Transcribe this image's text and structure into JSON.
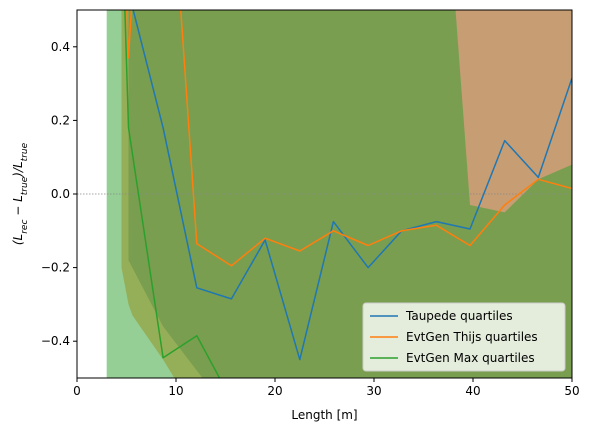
{
  "chart_data": {
    "type": "line",
    "xlabel": "Length [m]",
    "ylabel": "(L_rec − L_true)/L_true",
    "xlim": [
      0,
      50
    ],
    "ylim": [
      -0.5,
      0.5
    ],
    "xticks": [
      0,
      10,
      20,
      30,
      40,
      50
    ],
    "yticks": [
      -0.4,
      -0.2,
      0.0,
      0.2,
      0.4
    ],
    "x_tick_labels": [
      "0",
      "10",
      "20",
      "30",
      "40",
      "50"
    ],
    "y_tick_labels": [
      "−0.4",
      "−0.2",
      "0.0",
      "0.2",
      "0.4"
    ],
    "reference_line": {
      "y": 0.0,
      "style": "dotted",
      "color": "#888888"
    },
    "legend_position": "lower-right",
    "series": [
      {
        "name": "Taupede quartiles",
        "color": "#1f77b4",
        "x": [
          5.2,
          8.7,
          12.1,
          15.6,
          19.0,
          22.5,
          25.9,
          29.4,
          32.8,
          36.3,
          39.7,
          43.2,
          46.6,
          50.0
        ],
        "y": [
          0.55,
          0.18,
          -0.255,
          -0.285,
          -0.125,
          -0.45,
          -0.075,
          -0.2,
          -0.1,
          -0.075,
          -0.095,
          0.145,
          0.045,
          0.315
        ],
        "band_upper": [
          1.2,
          1.2,
          1.2,
          1.2,
          1.2,
          1.2,
          1.2,
          1.2,
          1.2,
          1.2,
          1.2,
          1.2,
          1.2,
          1.2
        ],
        "band_lower": [
          -0.18,
          -0.36,
          -0.48,
          -0.6,
          -0.6,
          -0.6,
          -0.6,
          -0.6,
          -0.6,
          -0.6,
          -0.6,
          -0.6,
          -0.6,
          -0.6
        ]
      },
      {
        "name": "EvtGen Thijs quartiles",
        "color": "#ff7f0e",
        "x": [
          4.5,
          5.2,
          5.6,
          8.7,
          12.1,
          15.6,
          19.0,
          22.5,
          25.9,
          29.4,
          32.8,
          36.3,
          39.7,
          43.2,
          46.6,
          50.0
        ],
        "y": [
          0.95,
          0.37,
          0.55,
          1.2,
          -0.135,
          -0.195,
          -0.12,
          -0.155,
          -0.1,
          -0.14,
          -0.1,
          -0.085,
          -0.14,
          -0.03,
          0.04,
          0.015
        ],
        "band_upper": [
          1.2,
          1.2,
          1.2,
          1.2,
          1.2,
          1.2,
          1.2,
          1.2,
          1.2,
          1.2,
          1.2,
          1.2,
          1.2,
          1.2,
          1.2,
          1.2
        ],
        "band_lower": [
          -0.2,
          -0.3,
          -0.33,
          -0.45,
          -0.6,
          -0.6,
          -0.6,
          -0.6,
          -0.6,
          -0.6,
          -0.6,
          -0.6,
          -0.6,
          -0.6,
          -0.6,
          -0.6
        ]
      },
      {
        "name": "EvtGen Max quartiles",
        "color": "#2ca02c",
        "x": [
          4.5,
          5.2,
          8.7,
          12.1,
          15.6
        ],
        "y": [
          0.8,
          0.18,
          -0.445,
          -0.385,
          -0.56
        ],
        "band_upper": [
          [
            3.0,
            1.2
          ],
          [
            5.0,
            1.2
          ],
          [
            8.7,
            1.2
          ],
          [
            12.1,
            1.2
          ],
          [
            15.6,
            1.2
          ],
          [
            19.0,
            1.2
          ],
          [
            22.5,
            1.2
          ],
          [
            23.3,
            1.2
          ],
          [
            25.9,
            1.2
          ],
          [
            29.4,
            1.2
          ],
          [
            31.6,
            1.2
          ],
          [
            32.8,
            1.2
          ],
          [
            35.4,
            1.2
          ],
          [
            36.3,
            1.2
          ],
          [
            39.7,
            -0.03
          ],
          [
            43.2,
            -0.05
          ],
          [
            46.6,
            0.04
          ],
          [
            50.0,
            0.08
          ]
        ],
        "band_lower": [
          -0.6,
          -0.6,
          -0.6,
          -0.6,
          -0.6,
          -0.6,
          -0.6,
          -0.6,
          -0.6,
          -0.6,
          -0.6,
          -0.6,
          -0.6,
          -0.6,
          -0.6,
          -0.6,
          -0.6,
          -0.6
        ]
      }
    ]
  }
}
